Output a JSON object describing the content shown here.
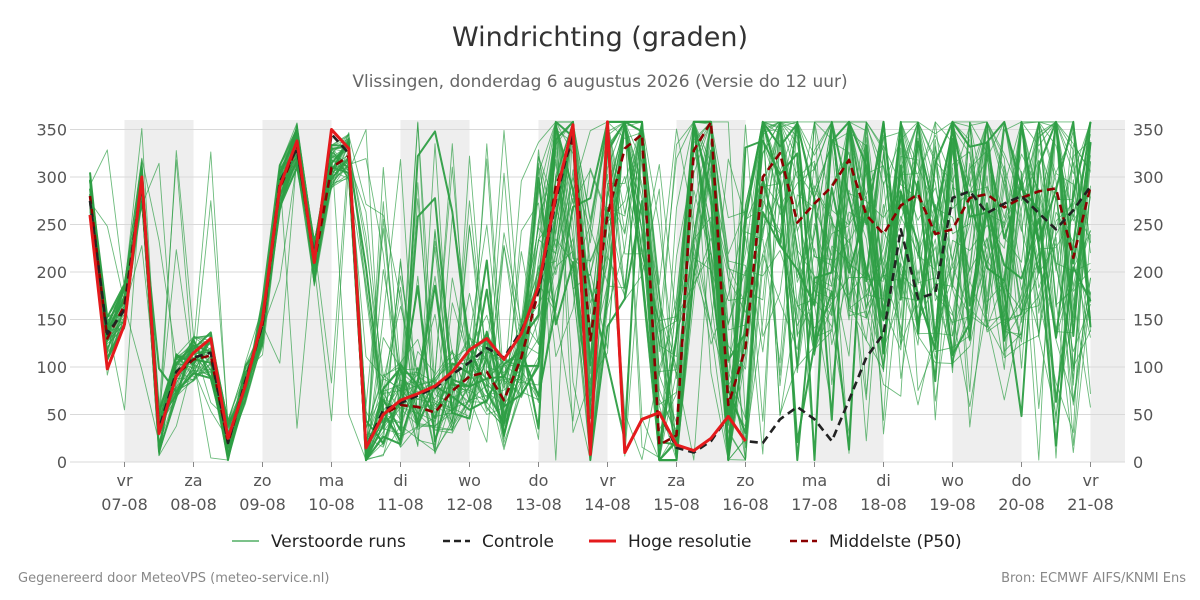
{
  "title": "Windrichting (graden)",
  "subtitle": "Vlissingen, donderdag  6 augustus 2026 (Versie do 12 uur)",
  "footer": {
    "left": "Gegenereerd door MeteoVPS (meteo-service.nl)",
    "right": "Bron: ECMWF AIFS/KNMI Ens"
  },
  "colors": {
    "ensemble": "#2e9e44",
    "control": "#222222",
    "hires": "#e41a1c",
    "median": "#8b0000",
    "weekend_band": "#eeeeee",
    "grid": "#d9d9d9"
  },
  "chart_data": {
    "type": "line",
    "title": "Windrichting (graden)",
    "ylim": [
      0,
      360
    ],
    "yticks": [
      0,
      50,
      100,
      150,
      200,
      250,
      300,
      350
    ],
    "x_range": [
      "2026-08-06T12:00",
      "2026-08-21T12:00"
    ],
    "x_step_hours": 6,
    "x_ticks": [
      {
        "day": "vr",
        "date": "07-08"
      },
      {
        "day": "za",
        "date": "08-08"
      },
      {
        "day": "zo",
        "date": "09-08"
      },
      {
        "day": "ma",
        "date": "10-08"
      },
      {
        "day": "di",
        "date": "11-08"
      },
      {
        "day": "wo",
        "date": "12-08"
      },
      {
        "day": "do",
        "date": "13-08"
      },
      {
        "day": "vr",
        "date": "14-08"
      },
      {
        "day": "za",
        "date": "15-08"
      },
      {
        "day": "zo",
        "date": "16-08"
      },
      {
        "day": "ma",
        "date": "17-08"
      },
      {
        "day": "di",
        "date": "18-08"
      },
      {
        "day": "wo",
        "date": "19-08"
      },
      {
        "day": "do",
        "date": "20-08"
      },
      {
        "day": "vr",
        "date": "21-08"
      }
    ],
    "shaded_days": [
      "07-08",
      "09-08",
      "11-08",
      "13-08",
      "15-08",
      "17-08",
      "19-08",
      "21-08"
    ],
    "grid": true,
    "legend_position": "bottom",
    "series": [
      {
        "name": "Hoge resolutie",
        "style": "solid",
        "color": "#e41a1c",
        "values": [
          260,
          98,
          145,
          300,
          30,
          90,
          115,
          130,
          25,
          80,
          150,
          290,
          338,
          210,
          350,
          330,
          15,
          50,
          65,
          72,
          80,
          95,
          118,
          130,
          108,
          135,
          185,
          280,
          355,
          8,
          358,
          10,
          45,
          52,
          18,
          12,
          25,
          48,
          22
        ]
      },
      {
        "name": "Controle",
        "style": "dashed",
        "color": "#222222",
        "values": [
          275,
          135,
          160,
          295,
          35,
          95,
          110,
          115,
          20,
          85,
          145,
          295,
          330,
          215,
          345,
          325,
          15,
          55,
          62,
          70,
          78,
          92,
          105,
          120,
          110,
          138,
          180,
          275,
          350,
          8,
          355,
          10,
          45,
          52,
          15,
          10,
          22,
          48,
          22,
          20,
          45,
          58,
          45,
          22,
          65,
          110,
          135,
          245,
          172,
          178,
          278,
          285,
          262,
          272,
          280,
          262,
          245,
          265,
          290
        ]
      },
      {
        "name": "Middelste (P50)",
        "style": "dashed",
        "color": "#8b0000",
        "values": [
          280,
          130,
          165,
          295,
          30,
          92,
          108,
          112,
          20,
          82,
          145,
          288,
          332,
          210,
          310,
          322,
          15,
          50,
          60,
          58,
          52,
          75,
          90,
          95,
          65,
          110,
          180,
          290,
          340,
          128,
          260,
          330,
          345,
          18,
          28,
          328,
          358,
          60,
          120,
          300,
          325,
          252,
          272,
          290,
          318,
          260,
          240,
          270,
          282,
          240,
          245,
          278,
          282,
          268,
          278,
          285,
          288,
          215,
          290
        ]
      }
    ],
    "ensemble": {
      "name": "Verstoorde runs",
      "members": 50
    }
  },
  "legend": {
    "items": [
      {
        "label": "Verstoorde runs"
      },
      {
        "label": "Controle"
      },
      {
        "label": "Hoge resolutie"
      },
      {
        "label": "Middelste (P50)"
      }
    ]
  }
}
